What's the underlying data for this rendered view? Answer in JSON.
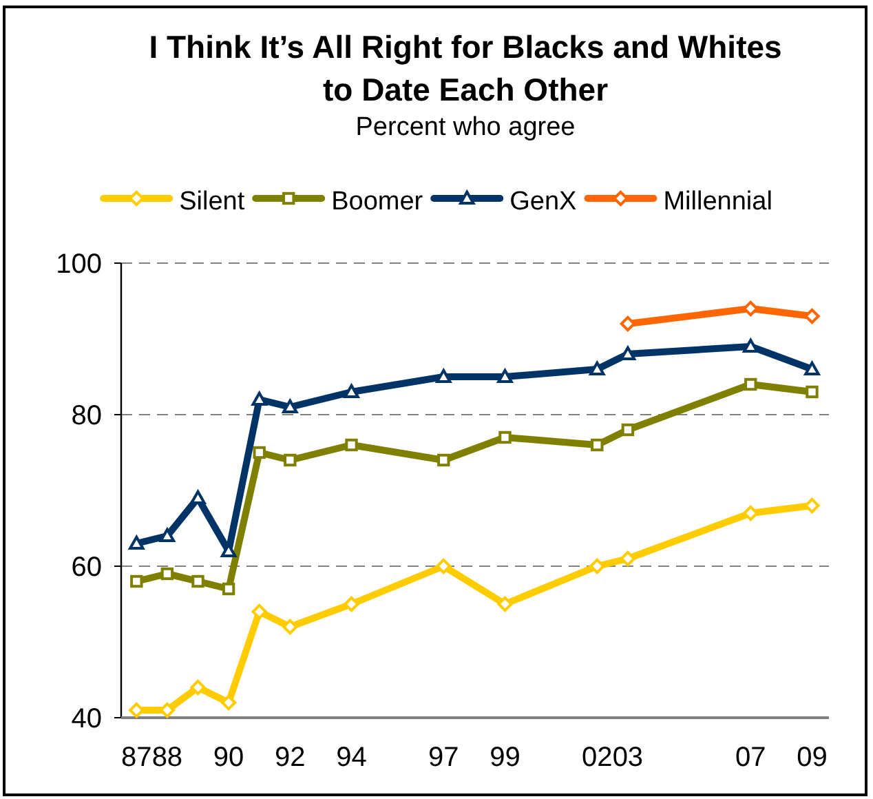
{
  "chart_data": {
    "type": "line",
    "title": "I Think It’s All Right for Blacks and Whites\nto Date Each Other",
    "subtitle": "Percent who agree",
    "x": [
      1987,
      1988,
      1989,
      1990,
      1991,
      1992,
      1994,
      1997,
      1999,
      2002,
      2003,
      2007,
      2009
    ],
    "series": [
      {
        "name": "Silent",
        "color": "#ffcc00",
        "marker": "diamond",
        "values": [
          41,
          41,
          44,
          42,
          54,
          52,
          55,
          60,
          55,
          60,
          61,
          67,
          68
        ]
      },
      {
        "name": "Boomer",
        "color": "#808000",
        "marker": "square",
        "values": [
          58,
          59,
          58,
          57,
          75,
          74,
          76,
          74,
          77,
          76,
          78,
          84,
          83
        ]
      },
      {
        "name": "GenX",
        "color": "#003366",
        "marker": "triangle",
        "values": [
          63,
          64,
          69,
          62,
          82,
          81,
          83,
          85,
          85,
          86,
          88,
          89,
          86
        ]
      },
      {
        "name": "Millennial",
        "color": "#ff6600",
        "marker": "diamond",
        "values": [
          null,
          null,
          null,
          null,
          null,
          null,
          null,
          null,
          null,
          null,
          92,
          94,
          93
        ]
      }
    ],
    "xlim": [
      1986.5,
      2009.55
    ],
    "xticks": [
      {
        "value": 1987,
        "label": "87"
      },
      {
        "value": 1988,
        "label": "88"
      },
      {
        "value": 1990,
        "label": "90"
      },
      {
        "value": 1992,
        "label": "92"
      },
      {
        "value": 1994,
        "label": "94"
      },
      {
        "value": 1997,
        "label": "97"
      },
      {
        "value": 1999,
        "label": "99"
      },
      {
        "value": 2002,
        "label": "02"
      },
      {
        "value": 2003,
        "label": "03"
      },
      {
        "value": 2007,
        "label": "07"
      },
      {
        "value": 2009,
        "label": "09"
      }
    ],
    "ylim": [
      40,
      100
    ],
    "yticks": [
      40,
      60,
      80,
      100
    ],
    "grid": "y",
    "legend": "top",
    "line_style": "solid"
  }
}
